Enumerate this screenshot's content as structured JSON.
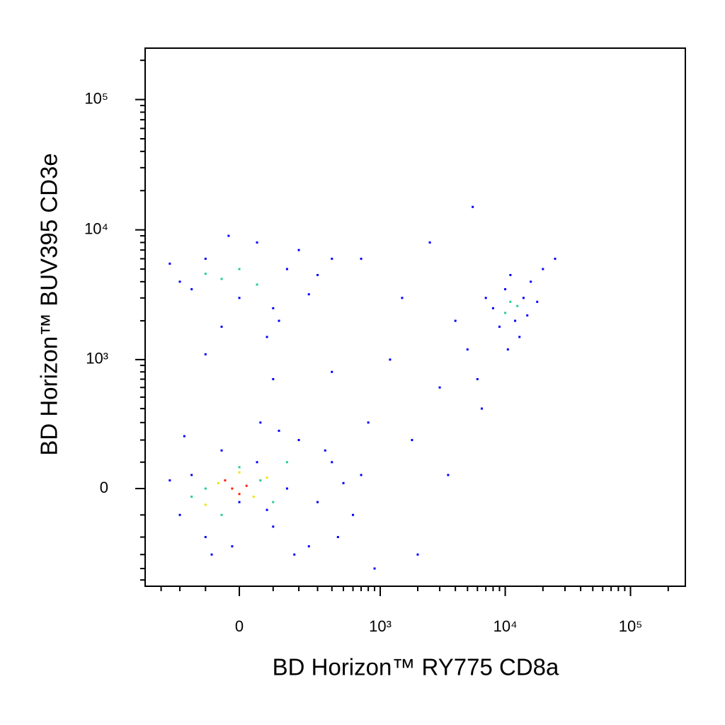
{
  "chart_data": {
    "type": "scatter",
    "xlabel": "BD Horizon™ RY775 CD8a",
    "ylabel": "BD Horizon™ BUV395 CD3e",
    "xscale": "biexponential",
    "yscale": "biexponential",
    "xlim": [
      -413,
      274000
    ],
    "ylim": [
      -563,
      248000
    ],
    "xticks": [
      0,
      {
        "value": 1000,
        "label": "10³"
      },
      {
        "value": 10000,
        "label": "10⁴"
      },
      {
        "value": 100000,
        "label": "10⁵"
      }
    ],
    "yticks": [
      0,
      {
        "value": 1000,
        "label": "10³"
      },
      {
        "value": 10000,
        "label": "10⁴"
      },
      {
        "value": 100000,
        "label": "10⁵"
      }
    ],
    "xminorticks": [
      -300,
      -200,
      -100,
      100,
      200,
      300,
      400,
      500,
      600,
      700,
      800,
      900,
      2000,
      3000,
      4000,
      5000,
      6000,
      7000,
      8000,
      9000,
      20000,
      30000,
      40000,
      50000,
      60000,
      70000,
      80000,
      90000,
      200000
    ],
    "yminorticks": [
      -500,
      -400,
      -300,
      -200,
      -100,
      100,
      200,
      300,
      400,
      500,
      600,
      700,
      800,
      900,
      2000,
      3000,
      4000,
      5000,
      6000,
      7000,
      8000,
      9000,
      20000,
      30000,
      40000,
      50000,
      60000,
      70000,
      80000,
      90000,
      200000
    ],
    "series": [
      {
        "color": "#0000ff",
        "x": [
          -200,
          -150,
          -100,
          -50,
          0,
          50,
          100,
          150,
          200,
          -250,
          300,
          400,
          250,
          -80,
          60,
          500,
          600,
          120,
          -180,
          350,
          700,
          -20,
          80,
          180,
          450,
          -200,
          -100,
          0,
          50,
          100,
          -150,
          150,
          200,
          -50,
          250,
          300,
          -250,
          80,
          400,
          -30,
          120,
          8000,
          10000,
          12000,
          14000,
          16000,
          9000,
          11000,
          13000,
          18000,
          7000,
          20000,
          10500,
          15000,
          25000,
          700,
          1500,
          2500,
          3000,
          4000,
          800,
          1200,
          5000,
          6000,
          2000,
          3500,
          900,
          1800,
          5500,
          400,
          100,
          -100,
          6500
        ],
        "y": [
          -100,
          50,
          -200,
          150,
          -50,
          100,
          -150,
          0,
          200,
          30,
          -50,
          100,
          -250,
          -300,
          300,
          20,
          -100,
          250,
          220,
          150,
          50,
          -250,
          -80,
          -300,
          -200,
          4000,
          6000,
          3000,
          8000,
          2500,
          3500,
          5000,
          7000,
          1800,
          3200,
          4500,
          5500,
          1500,
          6000,
          9000,
          2000,
          2500,
          3500,
          2000,
          3000,
          4000,
          1800,
          4500,
          1500,
          2800,
          3000,
          5000,
          1200,
          2200,
          6000,
          6000,
          3000,
          8000,
          600,
          2000,
          300,
          1000,
          1200,
          700,
          -300,
          50,
          -400,
          200,
          15000,
          800,
          700,
          1100,
          400
        ]
      },
      {
        "color": "#1fd08a",
        "x": [
          -100,
          0,
          100,
          -50,
          60,
          150,
          -150,
          -50,
          50,
          0,
          -100,
          11000,
          12500,
          10000
        ],
        "y": [
          0,
          80,
          -50,
          -100,
          30,
          100,
          -30,
          4200,
          3800,
          5000,
          4600,
          2800,
          2600,
          2300
        ]
      },
      {
        "color": "#e8e800",
        "x": [
          -60,
          40,
          0,
          -100,
          80
        ],
        "y": [
          20,
          -30,
          60,
          -60,
          40
        ]
      },
      {
        "color": "#ff2000",
        "x": [
          -20,
          20,
          0,
          -40
        ],
        "y": [
          0,
          10,
          -20,
          30
        ]
      }
    ]
  }
}
